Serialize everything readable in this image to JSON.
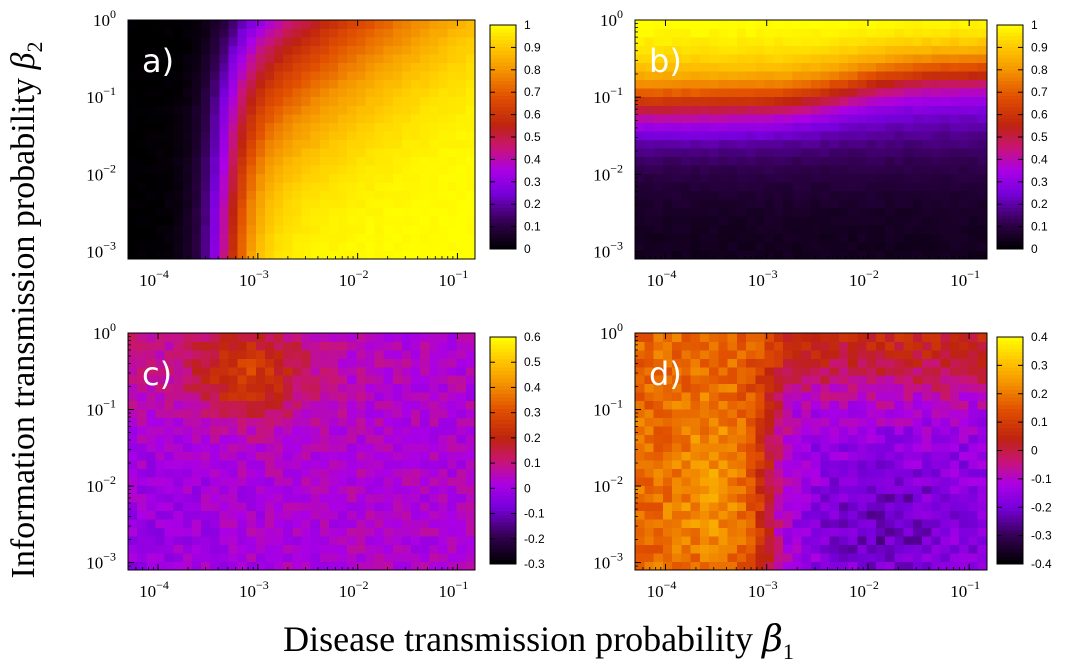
{
  "figure": {
    "xlabel_text": "Disease transmission probability ",
    "xlabel_symbol": "β",
    "xlabel_sub": "1",
    "ylabel_text": "Information transmission probability ",
    "ylabel_symbol": "β",
    "ylabel_sub": "2"
  },
  "chart_data": [
    {
      "type": "heatmap",
      "panel_label": "a)",
      "x_scale": "log",
      "y_scale": "log",
      "xlim": [
        5e-05,
        0.15
      ],
      "ylim": [
        0.0008,
        1
      ],
      "x_ticks": [
        {
          "base": "10",
          "exp": "−4"
        },
        {
          "base": "10",
          "exp": "−3"
        },
        {
          "base": "10",
          "exp": "−2"
        },
        {
          "base": "10",
          "exp": "−1"
        }
      ],
      "y_ticks": [
        {
          "base": "10",
          "exp": "0"
        },
        {
          "base": "10",
          "exp": "−1"
        },
        {
          "base": "10",
          "exp": "−2"
        },
        {
          "base": "10",
          "exp": "−3"
        }
      ],
      "colorbar": {
        "min": 0,
        "max": 1,
        "ticks": [
          "1",
          "0.9",
          "0.8",
          "0.7",
          "0.6",
          "0.5",
          "0.4",
          "0.3",
          "0.2",
          "0.1",
          "0"
        ]
      },
      "value_model": "low (≈0) at small β1 and in upper-left region; rises to ≈0.7–1 for β1 above ~5×10^-4 when β2 below the diagonal; maximum ≈1 at lower right"
    },
    {
      "type": "heatmap",
      "panel_label": "b)",
      "x_scale": "log",
      "y_scale": "log",
      "xlim": [
        5e-05,
        0.15
      ],
      "ylim": [
        0.0008,
        1
      ],
      "x_ticks": [
        {
          "base": "10",
          "exp": "−4"
        },
        {
          "base": "10",
          "exp": "−3"
        },
        {
          "base": "10",
          "exp": "−2"
        },
        {
          "base": "10",
          "exp": "−1"
        }
      ],
      "y_ticks": [
        {
          "base": "10",
          "exp": "0"
        },
        {
          "base": "10",
          "exp": "−1"
        },
        {
          "base": "10",
          "exp": "−2"
        },
        {
          "base": "10",
          "exp": "−3"
        }
      ],
      "colorbar": {
        "min": 0,
        "max": 1,
        "ticks": [
          "1",
          "0.9",
          "0.8",
          "0.7",
          "0.6",
          "0.5",
          "0.4",
          "0.3",
          "0.2",
          "0.1",
          "0"
        ]
      },
      "value_model": "increases with β2; ≈0.9 at β2=1, transition near β2≈0.05–0.1 shifting upward for β1 > 10^-3; ≈0 at β2=10^-3"
    },
    {
      "type": "heatmap",
      "panel_label": "c)",
      "x_scale": "log",
      "y_scale": "log",
      "xlim": [
        5e-05,
        0.15
      ],
      "ylim": [
        0.0008,
        1
      ],
      "x_ticks": [
        {
          "base": "10",
          "exp": "−4"
        },
        {
          "base": "10",
          "exp": "−3"
        },
        {
          "base": "10",
          "exp": "−2"
        },
        {
          "base": "10",
          "exp": "−1"
        }
      ],
      "y_ticks": [
        {
          "base": "10",
          "exp": "0"
        },
        {
          "base": "10",
          "exp": "−1"
        },
        {
          "base": "10",
          "exp": "−2"
        },
        {
          "base": "10",
          "exp": "−3"
        }
      ],
      "colorbar": {
        "min": -0.3,
        "max": 0.6,
        "ticks": [
          "0.6",
          "0.5",
          "0.4",
          "0.3",
          "0.2",
          "0.1",
          "0",
          "-0.1",
          "-0.2",
          "-0.3"
        ]
      },
      "value_model": "mostly ≈0 to 0.05; ≈0.2–0.25 in upper-left region β1 ~2×10^-4–2×10^-3, β2 > 0.05; slightly negative (≈-0.05) at far left low β2"
    },
    {
      "type": "heatmap",
      "panel_label": "d)",
      "x_scale": "log",
      "y_scale": "log",
      "xlim": [
        5e-05,
        0.15
      ],
      "ylim": [
        0.0008,
        1
      ],
      "x_ticks": [
        {
          "base": "10",
          "exp": "−4"
        },
        {
          "base": "10",
          "exp": "−3"
        },
        {
          "base": "10",
          "exp": "−2"
        },
        {
          "base": "10",
          "exp": "−1"
        }
      ],
      "y_ticks": [
        {
          "base": "10",
          "exp": "0"
        },
        {
          "base": "10",
          "exp": "−1"
        },
        {
          "base": "10",
          "exp": "−2"
        },
        {
          "base": "10",
          "exp": "−3"
        }
      ],
      "colorbar": {
        "min": -0.4,
        "max": 0.4,
        "ticks": [
          "0.4",
          "0.3",
          "0.2",
          "0.1",
          "0",
          "-0.1",
          "-0.2",
          "-0.3",
          "-0.4"
        ]
      },
      "value_model": "positive (≈0.1–0.25) for β1 < ~10^-3 with maximum near β1≈3×10^-4, β2≈10^-2; ≈0.1 along top; negative (≈-0.15 to -0.25) for β1 > 10^-3 at low β2"
    }
  ]
}
